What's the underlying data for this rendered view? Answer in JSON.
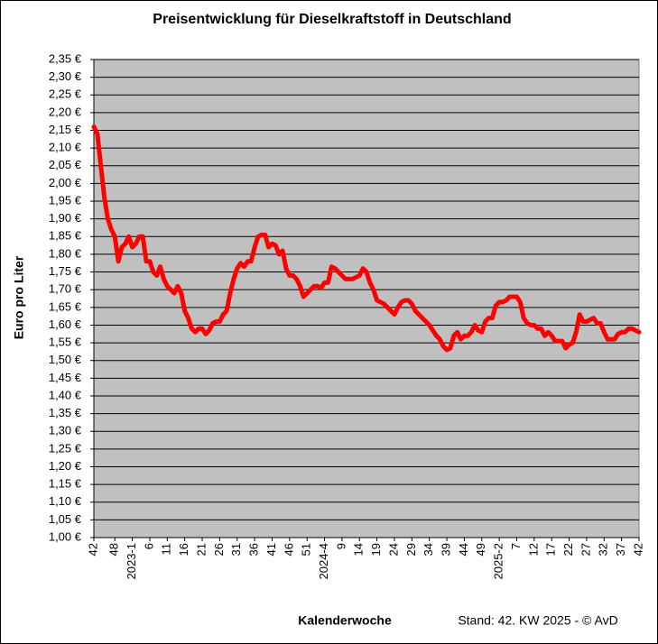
{
  "chart_data": {
    "type": "line",
    "title": "Preisentwicklung für Dieselkraftstoff in Deutschland",
    "xlabel": "Kalenderwoche",
    "ylabel": "Euro pro Liter",
    "note": "Stand: 42. KW 2025 - © AvD",
    "categories": [
      "42",
      null,
      null,
      null,
      null,
      null,
      "48",
      null,
      null,
      null,
      null,
      "2023-1",
      null,
      null,
      null,
      null,
      "6",
      null,
      null,
      null,
      null,
      "11",
      null,
      null,
      null,
      null,
      "16",
      null,
      null,
      null,
      null,
      "21",
      null,
      null,
      null,
      null,
      "26",
      null,
      null,
      null,
      null,
      "31",
      null,
      null,
      null,
      null,
      "36",
      null,
      null,
      null,
      null,
      "41",
      null,
      null,
      null,
      null,
      "46",
      null,
      null,
      null,
      null,
      "51",
      null,
      null,
      null,
      null,
      "2024-4",
      null,
      null,
      null,
      null,
      "9",
      null,
      null,
      null,
      null,
      "14",
      null,
      null,
      null,
      null,
      "19",
      null,
      null,
      null,
      null,
      "24",
      null,
      null,
      null,
      null,
      "29",
      null,
      null,
      null,
      null,
      "34",
      null,
      null,
      null,
      null,
      "39",
      null,
      null,
      null,
      null,
      "44",
      null,
      null,
      null,
      null,
      "49",
      null,
      null,
      null,
      null,
      "2025-2",
      null,
      null,
      null,
      null,
      "7",
      null,
      null,
      null,
      null,
      "12",
      null,
      null,
      null,
      null,
      "17",
      null,
      null,
      null,
      null,
      "22",
      null,
      null,
      null,
      null,
      "27",
      null,
      null,
      null,
      null,
      "32",
      null,
      null,
      null,
      null,
      "37",
      null,
      null,
      null,
      null,
      "42"
    ],
    "values": [
      2.16,
      2.14,
      2.05,
      1.96,
      1.9,
      1.87,
      1.85,
      1.78,
      1.82,
      1.83,
      1.85,
      1.82,
      1.83,
      1.85,
      1.85,
      1.78,
      1.78,
      1.75,
      1.74,
      1.765,
      1.73,
      1.71,
      1.7,
      1.69,
      1.71,
      1.69,
      1.64,
      1.62,
      1.59,
      1.58,
      1.59,
      1.59,
      1.575,
      1.585,
      1.605,
      1.61,
      1.61,
      1.63,
      1.64,
      1.69,
      1.73,
      1.76,
      1.775,
      1.765,
      1.78,
      1.78,
      1.82,
      1.85,
      1.855,
      1.855,
      1.82,
      1.83,
      1.825,
      1.8,
      1.81,
      1.76,
      1.74,
      1.74,
      1.73,
      1.71,
      1.68,
      1.69,
      1.7,
      1.71,
      1.71,
      1.705,
      1.72,
      1.72,
      1.765,
      1.76,
      1.75,
      1.74,
      1.73,
      1.73,
      1.73,
      1.735,
      1.74,
      1.76,
      1.75,
      1.72,
      1.7,
      1.67,
      1.665,
      1.66,
      1.65,
      1.64,
      1.63,
      1.65,
      1.665,
      1.67,
      1.67,
      1.66,
      1.64,
      1.63,
      1.62,
      1.61,
      1.6,
      1.585,
      1.57,
      1.56,
      1.54,
      1.53,
      1.535,
      1.57,
      1.58,
      1.56,
      1.57,
      1.57,
      1.58,
      1.6,
      1.585,
      1.58,
      1.61,
      1.62,
      1.62,
      1.655,
      1.665,
      1.665,
      1.67,
      1.68,
      1.68,
      1.68,
      1.665,
      1.62,
      1.605,
      1.6,
      1.6,
      1.59,
      1.59,
      1.57,
      1.58,
      1.57,
      1.555,
      1.555,
      1.555,
      1.535,
      1.545,
      1.55,
      1.58,
      1.63,
      1.61,
      1.61,
      1.615,
      1.62,
      1.605,
      1.605,
      1.58,
      1.56,
      1.56,
      1.56,
      1.575,
      1.58,
      1.58,
      1.59,
      1.59,
      1.585,
      1.58
    ],
    "color": "#ff0000",
    "ylim": [
      1.0,
      2.35
    ],
    "yticks": [
      {
        "value": 1.0,
        "label": "1,00 €"
      },
      {
        "value": 1.05,
        "label": "1,05 €"
      },
      {
        "value": 1.1,
        "label": "1,10 €"
      },
      {
        "value": 1.15,
        "label": "1,15 €"
      },
      {
        "value": 1.2,
        "label": "1,20 €"
      },
      {
        "value": 1.25,
        "label": "1,25 €"
      },
      {
        "value": 1.3,
        "label": "1,30 €"
      },
      {
        "value": 1.35,
        "label": "1,35 €"
      },
      {
        "value": 1.4,
        "label": "1,40 €"
      },
      {
        "value": 1.45,
        "label": "1,45 €"
      },
      {
        "value": 1.5,
        "label": "1,50 €"
      },
      {
        "value": 1.55,
        "label": "1,55 €"
      },
      {
        "value": 1.6,
        "label": "1,60 €"
      },
      {
        "value": 1.65,
        "label": "1,65 €"
      },
      {
        "value": 1.7,
        "label": "1,70 €"
      },
      {
        "value": 1.75,
        "label": "1,75 €"
      },
      {
        "value": 1.8,
        "label": "1,80 €"
      },
      {
        "value": 1.85,
        "label": "1,85 €"
      },
      {
        "value": 1.9,
        "label": "1,90 €"
      },
      {
        "value": 1.95,
        "label": "1,95 €"
      },
      {
        "value": 2.0,
        "label": "2,00 €"
      },
      {
        "value": 2.05,
        "label": "2,05 €"
      },
      {
        "value": 2.1,
        "label": "2,10 €"
      },
      {
        "value": 2.15,
        "label": "2,15 €"
      },
      {
        "value": 2.2,
        "label": "2,20 €"
      },
      {
        "value": 2.25,
        "label": "2,25 €"
      },
      {
        "value": 2.3,
        "label": "2,30 €"
      },
      {
        "value": 2.35,
        "label": "2,35 €"
      }
    ],
    "grid": true
  }
}
